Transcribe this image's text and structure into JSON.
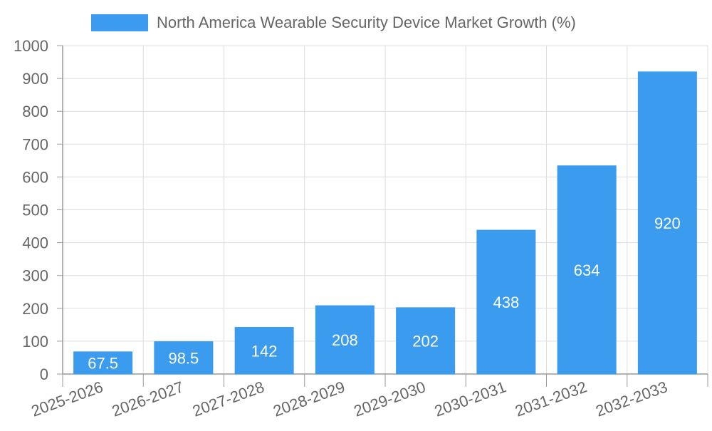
{
  "chart_data": {
    "type": "bar",
    "legend": {
      "label": "North America Wearable Security Device Market Growth (%)",
      "placement": "top-center"
    },
    "categories": [
      "2025-2026",
      "2026-2027",
      "2027-2028",
      "2028-2029",
      "2029-2030",
      "2030-2031",
      "2031-2032",
      "2032-2033"
    ],
    "series": [
      {
        "name": "North America Wearable Security Device Market Growth (%)",
        "values": [
          67.5,
          98.5,
          142,
          208,
          202,
          438,
          634,
          920
        ],
        "labels": [
          "67.5",
          "98.5",
          "142",
          "208",
          "202",
          "438",
          "634",
          "920"
        ],
        "color": "#3a9bef"
      }
    ],
    "ylim": [
      0,
      1000
    ],
    "yticks": [
      0,
      100,
      200,
      300,
      400,
      500,
      600,
      700,
      800,
      900,
      1000
    ],
    "grid": true,
    "colors": {
      "bar": "#3a9bef",
      "grid": "#dddddd",
      "axis": "#999999",
      "text": "#666666",
      "label": "#ffffff"
    }
  }
}
